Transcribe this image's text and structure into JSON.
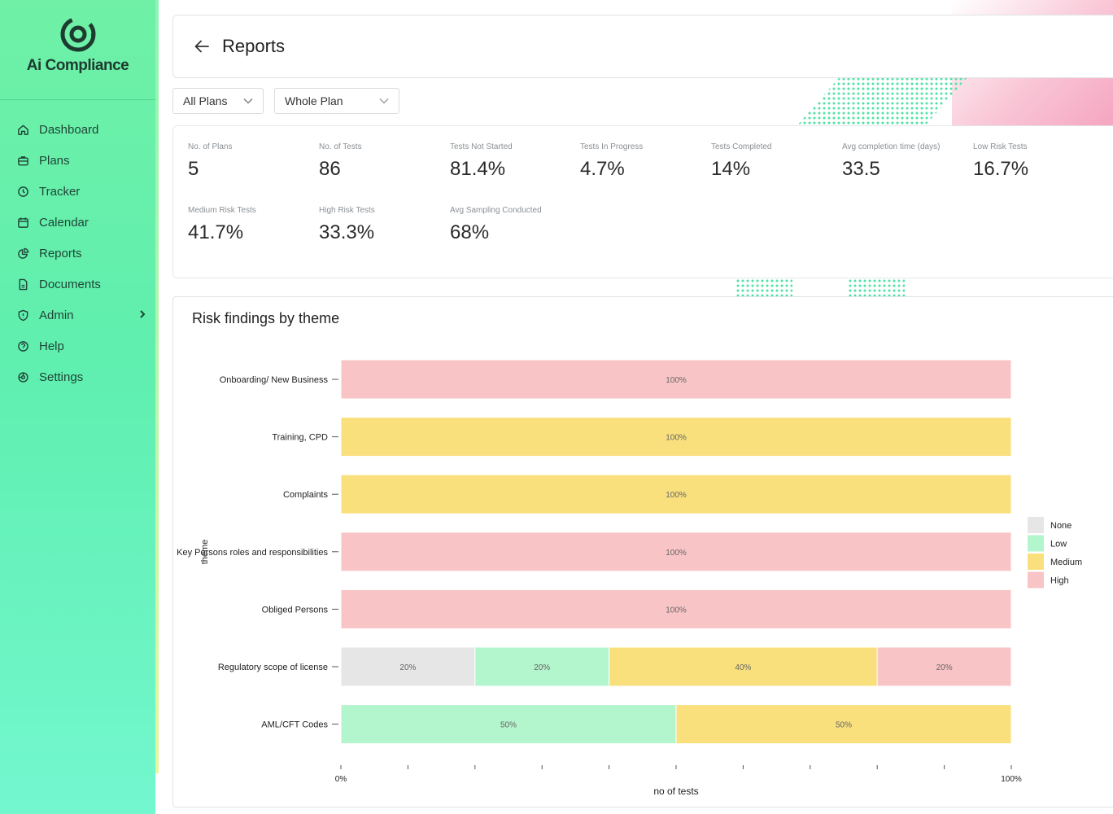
{
  "brand": {
    "name": "Ai Compliance",
    "logo_icon": "at-sign-logo-icon"
  },
  "sidebar": {
    "items": [
      {
        "label": "Dashboard",
        "icon": "home-icon"
      },
      {
        "label": "Plans",
        "icon": "briefcase-icon"
      },
      {
        "label": "Tracker",
        "icon": "clock-icon"
      },
      {
        "label": "Calendar",
        "icon": "calendar-icon"
      },
      {
        "label": "Reports",
        "icon": "pie-chart-icon"
      },
      {
        "label": "Documents",
        "icon": "document-icon"
      },
      {
        "label": "Admin",
        "icon": "shield-icon",
        "has_submenu": true
      },
      {
        "label": "Help",
        "icon": "help-icon"
      },
      {
        "label": "Settings",
        "icon": "gear-icon"
      }
    ]
  },
  "header": {
    "title": "Reports"
  },
  "filters": {
    "plans": "All Plans",
    "scope": "Whole Plan"
  },
  "stats": [
    {
      "label": "No. of Plans",
      "value": "5"
    },
    {
      "label": "No. of Tests",
      "value": "86"
    },
    {
      "label": "Tests Not Started",
      "value": "81.4%"
    },
    {
      "label": "Tests In Progress",
      "value": "4.7%"
    },
    {
      "label": "Tests Completed",
      "value": "14%"
    },
    {
      "label": "Avg completion time (days)",
      "value": "33.5"
    },
    {
      "label": "Low Risk Tests",
      "value": "16.7%"
    },
    {
      "label": "Medium Risk Tests",
      "value": "41.7%"
    },
    {
      "label": "High Risk Tests",
      "value": "33.3%"
    },
    {
      "label": "Avg Sampling Conducted",
      "value": "68%"
    }
  ],
  "colors": {
    "None": "#e6e6e6",
    "Low": "#b3f5cc",
    "Medium": "#f9e07d",
    "High": "#f9c4c6"
  },
  "chart_data": {
    "type": "bar",
    "orientation": "horizontal",
    "stacked": "percent",
    "title": "Risk findings by theme",
    "xlabel": "no of tests",
    "ylabel": "theme",
    "xlim": [
      0,
      100
    ],
    "x_tick_labels": [
      "0%",
      "100%"
    ],
    "x_tick_count": 11,
    "legend_position": "right",
    "legend": [
      "None",
      "Low",
      "Medium",
      "High"
    ],
    "categories": [
      "Onboarding/ New Business",
      "Training, CPD",
      "Complaints",
      "Key Persons roles and responsibilities",
      "Obliged Persons",
      "Regulatory scope of license",
      "AML/CFT Codes"
    ],
    "series": [
      {
        "name": "None",
        "values": [
          0,
          0,
          0,
          0,
          0,
          20,
          0
        ]
      },
      {
        "name": "Low",
        "values": [
          0,
          0,
          0,
          0,
          0,
          20,
          50
        ]
      },
      {
        "name": "Medium",
        "values": [
          0,
          100,
          100,
          0,
          0,
          40,
          50
        ]
      },
      {
        "name": "High",
        "values": [
          100,
          0,
          0,
          100,
          100,
          20,
          0
        ]
      }
    ]
  }
}
